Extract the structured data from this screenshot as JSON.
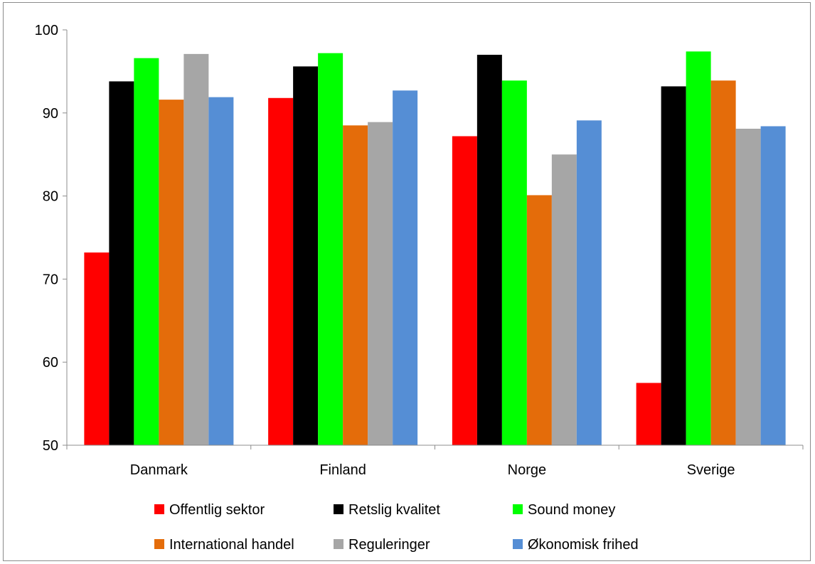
{
  "chart_data": {
    "type": "bar",
    "title": "",
    "xlabel": "",
    "ylabel": "",
    "ylim": [
      50,
      100
    ],
    "yticks": [
      50,
      60,
      70,
      80,
      90,
      100
    ],
    "grid": false,
    "legend_position": "bottom",
    "categories": [
      "Danmark",
      "Finland",
      "Norge",
      "Sverige"
    ],
    "series": [
      {
        "name": "Offentlig sektor",
        "color": "#ff0000",
        "values": [
          73.2,
          91.8,
          87.2,
          57.5
        ]
      },
      {
        "name": "Retslig kvalitet",
        "color": "#000000",
        "values": [
          93.8,
          95.6,
          97.0,
          93.2
        ]
      },
      {
        "name": "Sound money",
        "color": "#00ff00",
        "values": [
          96.6,
          97.2,
          93.9,
          97.4
        ]
      },
      {
        "name": "International handel",
        "color": "#e46c0a",
        "values": [
          91.6,
          88.5,
          80.1,
          93.9
        ]
      },
      {
        "name": "Reguleringer",
        "color": "#a6a6a6",
        "values": [
          97.1,
          88.9,
          85.0,
          88.1
        ]
      },
      {
        "name": "Økonomisk frihed",
        "color": "#558ed5",
        "values": [
          91.9,
          92.7,
          89.1,
          88.4
        ]
      }
    ]
  }
}
